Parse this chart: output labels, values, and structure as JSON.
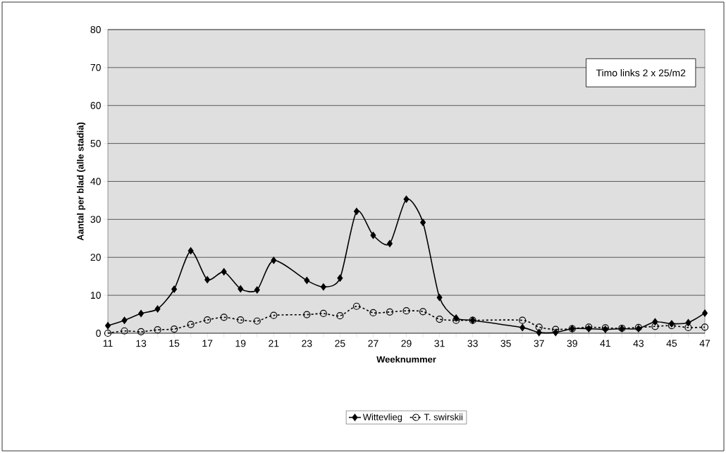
{
  "chart_data": {
    "type": "line",
    "xlabel": "Weeknummer",
    "ylabel": "Aantal per blad (alle stadia)",
    "xlim": [
      11,
      47
    ],
    "ylim": [
      0,
      80
    ],
    "xticks": [
      11,
      {
        "value": 12,
        "label": null
      },
      13,
      {
        "value": 14,
        "label": null
      },
      15,
      {
        "value": 16,
        "label": null
      },
      17,
      {
        "value": 18,
        "label": null
      },
      19,
      {
        "value": 20,
        "label": null
      },
      21,
      {
        "value": 22,
        "label": null
      },
      23,
      {
        "value": 24,
        "label": null
      },
      25,
      {
        "value": 26,
        "label": null
      },
      27,
      {
        "value": 28,
        "label": null
      },
      29,
      {
        "value": 30,
        "label": null
      },
      31,
      {
        "value": 32,
        "label": null
      },
      33,
      {
        "value": 34,
        "label": null
      },
      35,
      {
        "value": 36,
        "label": null
      },
      37,
      {
        "value": 38,
        "label": null
      },
      39,
      {
        "value": 40,
        "label": null
      },
      41,
      {
        "value": 42,
        "label": null
      },
      43,
      {
        "value": 44,
        "label": null
      },
      45,
      {
        "value": 46,
        "label": null
      },
      47
    ],
    "yticks": [
      0,
      10,
      20,
      30,
      40,
      50,
      60,
      70,
      80
    ],
    "grid": "y",
    "legend": "bottom",
    "annotations": [
      "Timo links 2 x 25/m2"
    ],
    "series": [
      {
        "name": "Wittevlieg",
        "color": "#000000",
        "marker": "diamond",
        "line_style": "solid",
        "x": [
          11,
          12,
          13,
          14,
          15,
          16,
          17,
          18,
          19,
          20,
          21,
          23,
          24,
          25,
          26,
          27,
          28,
          29,
          30,
          31,
          32,
          33,
          36,
          37,
          38,
          39,
          40,
          41,
          42,
          43,
          44,
          45,
          46,
          47
        ],
        "values": [
          2.0,
          3.4,
          5.2,
          6.4,
          11.6,
          21.7,
          14.1,
          16.2,
          11.7,
          11.4,
          19.2,
          13.9,
          12.2,
          14.5,
          32.1,
          25.8,
          23.6,
          35.3,
          29.2,
          9.4,
          4.0,
          3.4,
          1.5,
          0.2,
          0.2,
          1.2,
          1.2,
          1.0,
          1.2,
          1.2,
          3.0,
          2.5,
          2.8,
          5.3
        ]
      },
      {
        "name": "T. swirskii",
        "color": "#000000",
        "marker": "circle",
        "line_style": "dashed",
        "x": [
          11,
          12,
          13,
          14,
          15,
          16,
          17,
          18,
          19,
          20,
          21,
          23,
          24,
          25,
          26,
          27,
          28,
          29,
          30,
          31,
          32,
          33,
          36,
          37,
          38,
          39,
          40,
          41,
          42,
          43,
          44,
          45,
          46,
          47
        ],
        "values": [
          0.0,
          0.6,
          0.4,
          0.9,
          1.1,
          2.3,
          3.5,
          4.2,
          3.5,
          3.2,
          4.7,
          4.9,
          5.2,
          4.6,
          7.1,
          5.4,
          5.6,
          5.9,
          5.7,
          3.7,
          3.4,
          3.4,
          3.4,
          1.6,
          1.0,
          1.2,
          1.6,
          1.4,
          1.3,
          1.5,
          1.8,
          2.0,
          1.5,
          1.6
        ]
      }
    ]
  }
}
